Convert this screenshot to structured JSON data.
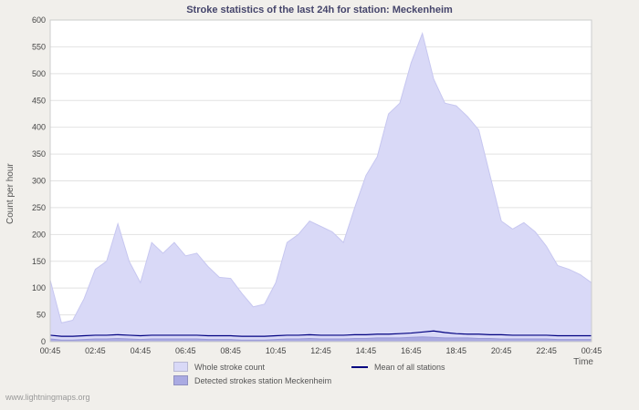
{
  "page": {
    "watermark": "www.lightningmaps.org"
  },
  "chart_data": {
    "type": "area",
    "title": "Stroke statistics of the last 24h for station: Meckenheim",
    "xlabel": "Time",
    "ylabel": "Count per hour",
    "ylim": [
      0,
      600
    ],
    "y_ticks": [
      0,
      50,
      100,
      150,
      200,
      250,
      300,
      350,
      400,
      450,
      500,
      550,
      600
    ],
    "x_range_hours": [
      0,
      24
    ],
    "x_tick_interval_hours": 2,
    "x_tick_labels": [
      "00:45",
      "02:45",
      "04:45",
      "06:45",
      "08:45",
      "10:45",
      "12:45",
      "14:45",
      "16:45",
      "18:45",
      "20:45",
      "22:45",
      "00:45"
    ],
    "x_step_hours": 0.5,
    "grid": "horizontal-only",
    "legend_position": "bottom",
    "series": [
      {
        "name": "Whole stroke count",
        "type": "area",
        "fill": "#d9d9f7",
        "edge": "#c7c7f0",
        "values": [
          115,
          35,
          40,
          80,
          135,
          150,
          220,
          150,
          110,
          185,
          165,
          185,
          160,
          165,
          140,
          120,
          118,
          90,
          65,
          70,
          110,
          185,
          200,
          225,
          215,
          205,
          185,
          250,
          310,
          345,
          425,
          445,
          520,
          575,
          490,
          445,
          440,
          420,
          395,
          310,
          225,
          210,
          222,
          205,
          178,
          142,
          135,
          125,
          110
        ]
      },
      {
        "name": "Detected strokes station Meckenheim",
        "type": "area",
        "fill": "#aaaae2",
        "edge": "#9a9ad8",
        "values": [
          5,
          3,
          3,
          4,
          5,
          5,
          6,
          5,
          4,
          5,
          5,
          5,
          5,
          5,
          4,
          4,
          4,
          3,
          3,
          3,
          4,
          5,
          5,
          6,
          5,
          5,
          5,
          6,
          6,
          7,
          7,
          7,
          8,
          9,
          8,
          7,
          7,
          7,
          6,
          6,
          5,
          5,
          5,
          5,
          5,
          4,
          4,
          4,
          4
        ]
      },
      {
        "name": "Mean of all stations",
        "type": "line",
        "color": "#000080",
        "values": [
          12,
          10,
          10,
          11,
          12,
          12,
          13,
          12,
          11,
          12,
          12,
          12,
          12,
          12,
          11,
          11,
          11,
          10,
          10,
          10,
          11,
          12,
          12,
          13,
          12,
          12,
          12,
          13,
          13,
          14,
          14,
          15,
          16,
          18,
          20,
          17,
          15,
          14,
          14,
          13,
          13,
          12,
          12,
          12,
          12,
          11,
          11,
          11,
          11
        ]
      }
    ],
    "legend": [
      {
        "label": "Whole stroke count",
        "series": 0,
        "style": "area"
      },
      {
        "label": "Mean of all stations",
        "series": 2,
        "style": "line"
      },
      {
        "label": "Detected strokes station Meckenheim",
        "series": 1,
        "style": "area"
      }
    ]
  }
}
